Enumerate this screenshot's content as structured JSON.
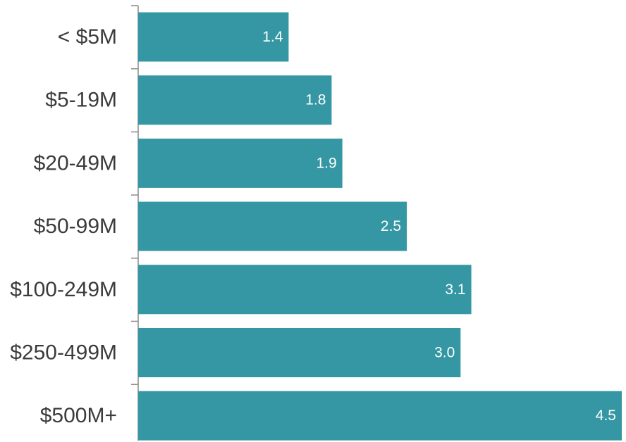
{
  "chart_data": {
    "type": "bar",
    "orientation": "horizontal",
    "categories": [
      "< $5M",
      "$5-19M",
      "$20-49M",
      "$50-99M",
      "$100-249M",
      "$250-499M",
      "$500M+"
    ],
    "values": [
      1.4,
      1.8,
      1.9,
      2.5,
      3.1,
      3.0,
      4.5
    ],
    "value_labels": [
      "1.4",
      "1.8",
      "1.9",
      "2.5",
      "3.1",
      "3.0",
      "4.5"
    ],
    "title": "",
    "xlabel": "",
    "ylabel": "",
    "xlim": [
      0,
      4.5
    ],
    "grid": false,
    "legend": "none",
    "bar_color": "#3497a3",
    "axis_color": "#8a8a8a",
    "label_color": "#3b3b3b",
    "value_label_color": "#ffffff"
  }
}
